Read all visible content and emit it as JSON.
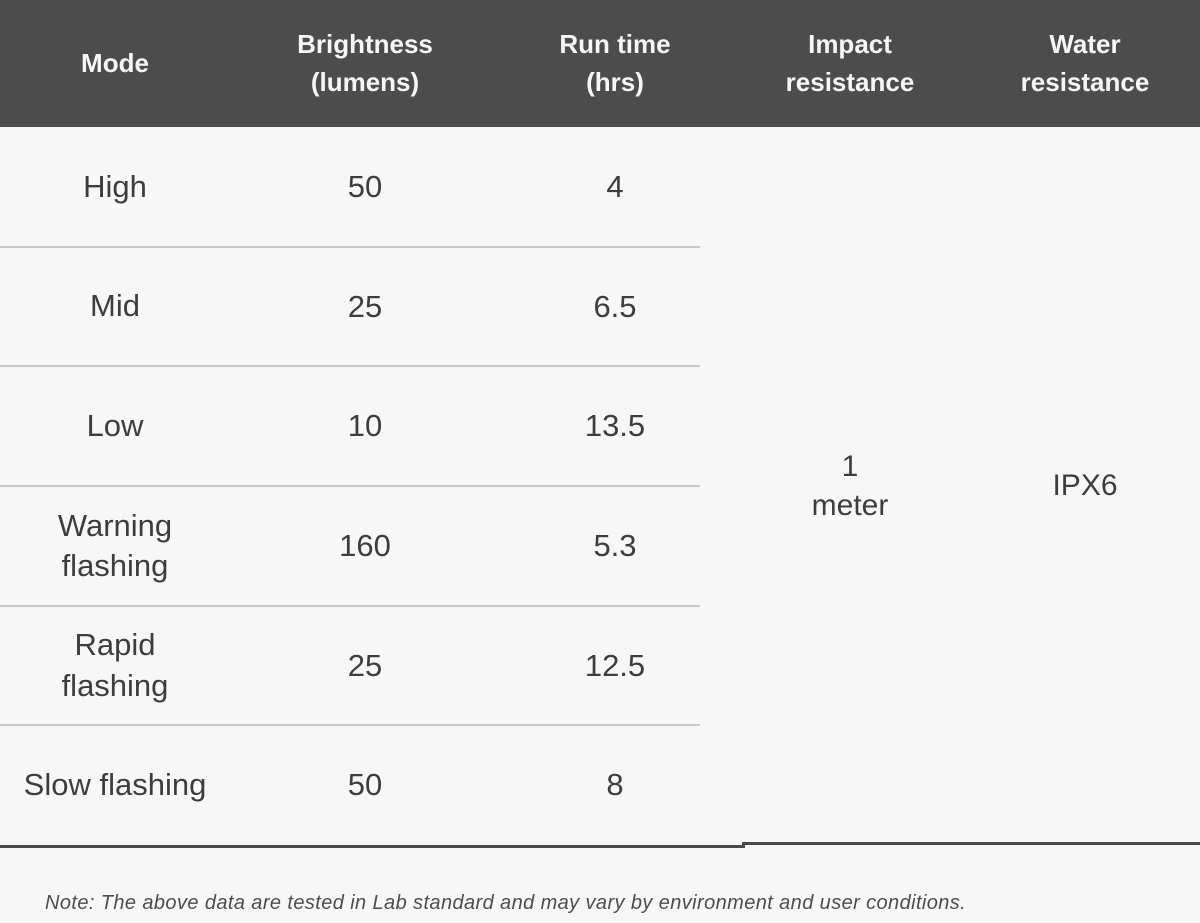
{
  "colors": {
    "header_bg": "#4c4c4c",
    "header_text": "#f6f6f6",
    "body_bg": "#f7f7f7",
    "body_text": "#3d3d3d",
    "row_separator": "#c7c7c7",
    "bottom_rule": "#4a4a4a",
    "note_text": "#4d4d4d"
  },
  "chart_data": {
    "type": "table",
    "columns": [
      {
        "line1": "Mode",
        "line2": ""
      },
      {
        "line1": "Brightness",
        "line2": "(lumens)"
      },
      {
        "line1": "Run time",
        "line2": "(hrs)"
      },
      {
        "line1": "Impact",
        "line2": "resistance"
      },
      {
        "line1": "Water",
        "line2": "resistance"
      }
    ],
    "rows": [
      {
        "mode": "High",
        "brightness": "50",
        "runtime": "4"
      },
      {
        "mode": "Mid",
        "brightness": "25",
        "runtime": "6.5"
      },
      {
        "mode": "Low",
        "brightness": "10",
        "runtime": "13.5"
      },
      {
        "mode": "Warning flashing",
        "brightness": "160",
        "runtime": "5.3"
      },
      {
        "mode": "Rapid flashing",
        "brightness": "25",
        "runtime": "12.5"
      },
      {
        "mode": "Slow flashing",
        "brightness": "50",
        "runtime": "8"
      }
    ],
    "impact_resistance": {
      "value": "1 meter",
      "line1": "1",
      "line2": "meter"
    },
    "water_resistance": "IPX6"
  },
  "note": {
    "text": "Note: The above data are tested in Lab standard and may vary by environment and user conditions."
  }
}
